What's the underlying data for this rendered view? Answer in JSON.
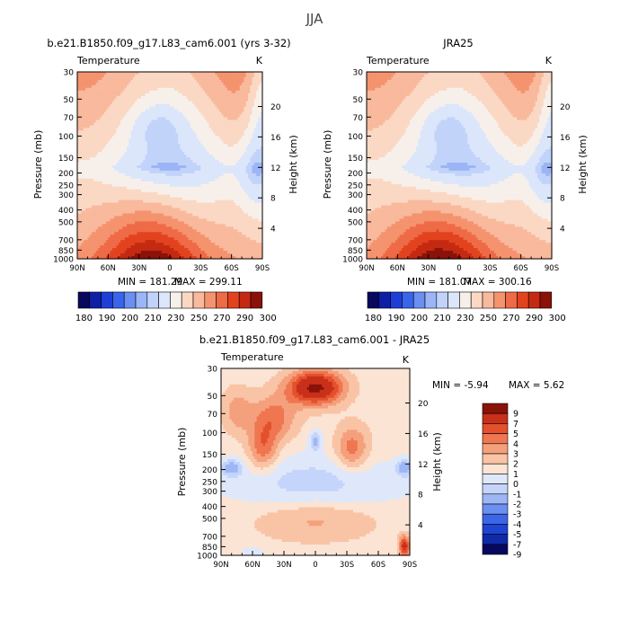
{
  "page": {
    "title": "JJA"
  },
  "colors": {
    "top_levels": [
      "#08085e",
      "#0f1ea6",
      "#1e3fd6",
      "#3a64ea",
      "#6b8ff2",
      "#9bb5f6",
      "#c2d3fa",
      "#dbe6fb",
      "#f7f0ea",
      "#fbd8c4",
      "#f9b99c",
      "#f5936f",
      "#ef6a46",
      "#e2431f",
      "#c42a12",
      "#8b1208"
    ],
    "diff_levels": [
      "#08085e",
      "#0f2aa8",
      "#1e44d4",
      "#3b66e8",
      "#6c90f1",
      "#9db6f6",
      "#c4d4fa",
      "#dfe8fb",
      "#fbe4d4",
      "#f9c4a6",
      "#f5a07c",
      "#ef7650",
      "#e4502c",
      "#c8301a",
      "#8b1208"
    ]
  },
  "chart_data": [
    {
      "type": "heatmap",
      "title": "b.e21.B1850.f09_g17.L83_cam6.001 (yrs 3-32)",
      "subtitle": "Temperature",
      "units": "K",
      "ylabel": "Pressure (mb)",
      "y2label": "Height (km)",
      "x_ticks": [
        "90N",
        "60N",
        "30N",
        "0",
        "30S",
        "60S",
        "90S"
      ],
      "y_ticks": [
        30,
        50,
        70,
        100,
        150,
        200,
        250,
        300,
        400,
        500,
        700,
        850,
        1000
      ],
      "y2_ticks": [
        20,
        16,
        12,
        8,
        4
      ],
      "ylim": [
        1000,
        30
      ],
      "min_label": "MIN = 181.29",
      "max_label": "MAX = 299.11",
      "min": 181.29,
      "max": 299.11,
      "colorbar_labels": [
        "180",
        "190",
        "200",
        "210",
        "230",
        "250",
        "270",
        "290",
        "300"
      ]
    },
    {
      "type": "heatmap",
      "title": "JRA25",
      "subtitle": "Temperature",
      "units": "K",
      "ylabel": "Pressure (mb)",
      "y2label": "Height (km)",
      "x_ticks": [
        "90N",
        "60N",
        "30N",
        "0",
        "30S",
        "60S",
        "90S"
      ],
      "y_ticks": [
        30,
        50,
        70,
        100,
        150,
        200,
        250,
        300,
        400,
        500,
        700,
        850,
        1000
      ],
      "y2_ticks": [
        20,
        16,
        12,
        8,
        4
      ],
      "ylim": [
        1000,
        30
      ],
      "min_label": "MIN = 181.07",
      "max_label": "MAX = 300.16",
      "min": 181.07,
      "max": 300.16,
      "colorbar_labels": [
        "180",
        "190",
        "200",
        "210",
        "230",
        "250",
        "270",
        "290",
        "300"
      ]
    },
    {
      "type": "heatmap",
      "title": "b.e21.B1850.f09_g17.L83_cam6.001 - JRA25",
      "subtitle": "Temperature",
      "units": "K",
      "ylabel": "Pressure (mb)",
      "y2label": "Height (km)",
      "x_ticks": [
        "90N",
        "60N",
        "30N",
        "0",
        "30S",
        "60S",
        "90S"
      ],
      "y_ticks": [
        30,
        50,
        70,
        100,
        150,
        200,
        250,
        300,
        400,
        500,
        700,
        850,
        1000
      ],
      "y2_ticks": [
        20,
        16,
        12,
        8,
        4
      ],
      "ylim": [
        1000,
        30
      ],
      "min_label": "MIN = -5.94",
      "max_label": "MAX = 5.62",
      "min": -5.94,
      "max": 5.62,
      "colorbar_labels": [
        "9",
        "7",
        "5",
        "4",
        "3",
        "2",
        "1",
        "0",
        "-1",
        "-2",
        "-3",
        "-4",
        "-5",
        "-7",
        "-9"
      ]
    }
  ]
}
